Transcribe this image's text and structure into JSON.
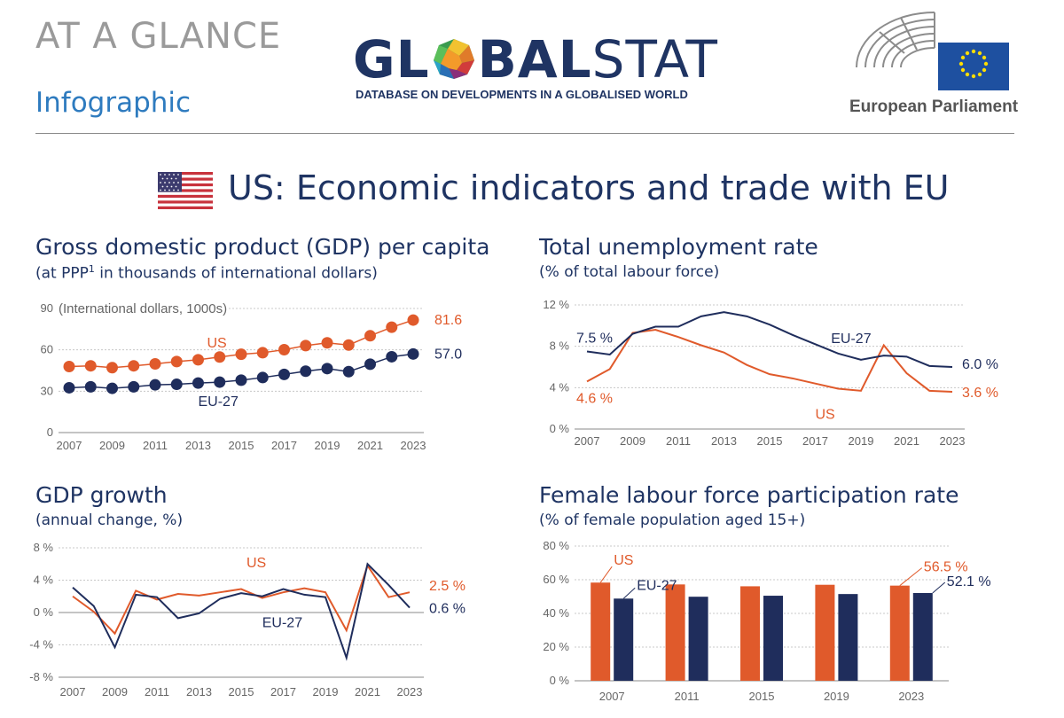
{
  "header": {
    "kicker": "AT A GLANCE",
    "subkicker": "Infographic",
    "logo_part1": "GL",
    "logo_part2": "BAL",
    "logo_part3": "STAT",
    "logo_tagline": "DATABASE ON DEVELOPMENTS IN A GLOBALISED WORLD",
    "institution": "European Parliament"
  },
  "main_title": "US: Economic indicators and trade with EU",
  "colors": {
    "us": "#e05a2b",
    "eu": "#1f2d5c",
    "grid": "#c8c8c8",
    "accent": "#2e7bbf"
  },
  "panels": {
    "gdp_pc": {
      "title": "Gross domestic product (GDP) per capita",
      "subtitle_a": "(at PPP",
      "subtitle_sup": "1",
      "subtitle_b": " in thousands of international dollars)"
    },
    "unemp": {
      "title": "Total unemployment rate",
      "subtitle": "(% of total labour force)"
    },
    "growth": {
      "title": "GDP growth",
      "subtitle": "(annual change, %)"
    },
    "flfp": {
      "title": "Female labour force participation rate",
      "subtitle": "(% of female population aged 15+)"
    }
  },
  "chart_data": [
    {
      "id": "gdp_pc",
      "type": "line",
      "x": [
        2007,
        2008,
        2009,
        2010,
        2011,
        2012,
        2013,
        2014,
        2015,
        2016,
        2017,
        2018,
        2019,
        2020,
        2021,
        2022,
        2023
      ],
      "xticks": [
        "2007",
        "2009",
        "2011",
        "2013",
        "2015",
        "2017",
        "2019",
        "2021",
        "2023"
      ],
      "ylim": [
        0,
        90
      ],
      "yticks": [
        0,
        30,
        60,
        90
      ],
      "ytick_labels": [
        "0",
        "30",
        "60",
        "90"
      ],
      "unit_note": "(International dollars, 1000s)",
      "series": [
        {
          "name": "US",
          "values": [
            47.9,
            48.4,
            47.1,
            48.4,
            49.8,
            51.5,
            52.8,
            54.8,
            56.8,
            57.9,
            60.1,
            63.1,
            65.1,
            63.5,
            70.2,
            76.4,
            81.6
          ],
          "end_label": "81.6"
        },
        {
          "name": "EU-27",
          "values": [
            32.5,
            33.2,
            32.1,
            33.2,
            34.6,
            35.0,
            35.9,
            36.6,
            38.0,
            39.9,
            42.2,
            44.5,
            46.4,
            44.2,
            49.6,
            55.0,
            57.0
          ],
          "end_label": "57.0"
        }
      ]
    },
    {
      "id": "unemp",
      "type": "line",
      "x": [
        2007,
        2008,
        2009,
        2010,
        2011,
        2012,
        2013,
        2014,
        2015,
        2016,
        2017,
        2018,
        2019,
        2020,
        2021,
        2022,
        2023
      ],
      "xticks": [
        "2007",
        "2009",
        "2011",
        "2013",
        "2015",
        "2017",
        "2019",
        "2021",
        "2023"
      ],
      "ylim": [
        0,
        12
      ],
      "yticks": [
        0,
        4,
        8,
        12
      ],
      "ytick_labels": [
        "0 %",
        "4 %",
        "8 %",
        "12 %"
      ],
      "series": [
        {
          "name": "US",
          "values": [
            4.6,
            5.8,
            9.3,
            9.6,
            8.9,
            8.1,
            7.4,
            6.2,
            5.3,
            4.9,
            4.4,
            3.9,
            3.7,
            8.1,
            5.4,
            3.7,
            3.6
          ],
          "start_label": "4.6 %",
          "end_label": "3.6 %"
        },
        {
          "name": "EU-27",
          "values": [
            7.5,
            7.2,
            9.2,
            9.9,
            9.9,
            10.9,
            11.3,
            10.9,
            10.1,
            9.1,
            8.2,
            7.3,
            6.7,
            7.1,
            7.0,
            6.1,
            6.0
          ],
          "start_label": "7.5 %",
          "end_label": "6.0 %"
        }
      ]
    },
    {
      "id": "growth",
      "type": "line",
      "x": [
        2007,
        2008,
        2009,
        2010,
        2011,
        2012,
        2013,
        2014,
        2015,
        2016,
        2017,
        2018,
        2019,
        2020,
        2021,
        2022,
        2023
      ],
      "xticks": [
        "2007",
        "2009",
        "2011",
        "2013",
        "2015",
        "2017",
        "2019",
        "2021",
        "2023"
      ],
      "ylim": [
        -8,
        8
      ],
      "yticks": [
        -8,
        -4,
        0,
        4,
        8
      ],
      "ytick_labels": [
        "-8 %",
        "-4 %",
        "0 %",
        "4 %",
        "8 %"
      ],
      "series": [
        {
          "name": "US",
          "values": [
            2.0,
            0.1,
            -2.6,
            2.7,
            1.6,
            2.3,
            2.1,
            2.5,
            2.9,
            1.8,
            2.5,
            3.0,
            2.5,
            -2.2,
            5.8,
            1.9,
            2.5
          ],
          "end_label": "2.5 %"
        },
        {
          "name": "EU-27",
          "values": [
            3.1,
            0.8,
            -4.3,
            2.2,
            1.9,
            -0.7,
            -0.1,
            1.7,
            2.4,
            2.0,
            2.9,
            2.2,
            1.9,
            -5.6,
            6.0,
            3.4,
            0.6
          ],
          "end_label": "0.6 %"
        }
      ]
    },
    {
      "id": "flfp",
      "type": "bar",
      "categories": [
        "2007",
        "2011",
        "2015",
        "2019",
        "2023"
      ],
      "ylim": [
        0,
        80
      ],
      "yticks": [
        0,
        20,
        40,
        60,
        80
      ],
      "ytick_labels": [
        "0 %",
        "20 %",
        "40 %",
        "60 %",
        "80 %"
      ],
      "series": [
        {
          "name": "US",
          "values": [
            58.3,
            57.2,
            56.1,
            57.0,
            56.5
          ],
          "end_label": "56.5 %"
        },
        {
          "name": "EU-27",
          "values": [
            48.8,
            49.9,
            50.5,
            51.5,
            52.1
          ],
          "end_label": "52.1 %"
        }
      ]
    }
  ]
}
